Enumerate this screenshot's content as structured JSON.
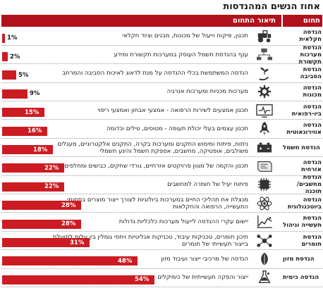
{
  "title": "אחוז הנשים המהנדסות",
  "header": {
    "field": "תחום",
    "description": "תיאור התחום"
  },
  "colors": {
    "accent": "#b0121b",
    "bar": "#cc1b22",
    "text": "#1a1a1a"
  },
  "chart_data": {
    "type": "bar",
    "orientation": "horizontal",
    "categories": [
      "הנדסה חקלאית",
      "הנדסת מערכות תקשורת",
      "הנדסת הסביבה",
      "הנדסה מכונות",
      "הנדסה ביו-רפואית",
      "הנדסה אווירונאוטית",
      "הנדסת חשמל",
      "הנדסה אזרחית",
      "הנדסת מחשבים/ תוכנה",
      "הנדסה ביוטכנולוגית",
      "הנדסת תעשייה וניהול",
      "הנדסת חומרים",
      "הנדסת מזון",
      "הנדסה כימית"
    ],
    "descriptions": [
      "תכנון, פיקוח וייעול של מכונות, מבנים וציוד חקלאי",
      "ענף בהנדסת חשמל העוסק במערכות תקשורת ומידע",
      "הנדסה המשתמשת בכלי ההנדסה על מנת לדאוג לאיכות הסביבה והמרחב",
      "מערכות מכניות ומערכות אנרגיה",
      "תכנון אמצעים לשירות הרפואה - אמצעי אבחון ואמצעי ריפוי",
      "תכנון עצמים בעלי יכולת תעופה - מטוסים, טילים וכדומה",
      "ניתוח, פיתוח ומימוש התקנים ומערכות בקרה, התקנים אלקטרוניים, מעגלים משולבים, אופטיקה, מחשבים, אספקת חשמל והינע חשמלי",
      "תכנון והקמה של מגוון פרויקטים אזרחיים, גורדי שחקים, כבישים ומחלפים",
      "פיתוח יעיל של חומרה למחשבים",
      "מנצלת את תהליכי החיים במערכות ביולוגיות לצורך ייצור מוצרים בתחומי התעשייה, הרפואה והחקלאות",
      "יישום עקרי ההנדסה לייעול מערכות כלכליות גדולות",
      "תיכון חומרים, טכניקות עיבוד, טכניקות אנליטיות ויחסי גומלין בין עלות לתועלת בייצור תעשייתי של חומרים",
      "הנדסה של מרכיבי ייצור ועיבוד מזון",
      "ייצור והפקה תעשייתית של כימיקלים"
    ],
    "icons": [
      "tractor-icon",
      "network-icon",
      "plant-hand-icon",
      "gear-icon",
      "monitor-pulse-icon",
      "rocket-icon",
      "battery-icon",
      "blueprint-icon",
      "chip-icon",
      "atom-icon",
      "chart-icon",
      "molecule-icon",
      "leaf-icon",
      "flask-icon"
    ],
    "values": [
      1,
      2,
      5,
      9,
      15,
      16,
      18,
      22,
      22,
      28,
      28,
      31,
      48,
      54
    ],
    "labels": [
      "1%",
      "2%",
      "5%",
      "9%",
      "15%",
      "16%",
      "18%",
      "22%",
      "22%",
      "28%",
      "28%",
      "31%",
      "48%",
      "54%"
    ],
    "unit": "%"
  }
}
